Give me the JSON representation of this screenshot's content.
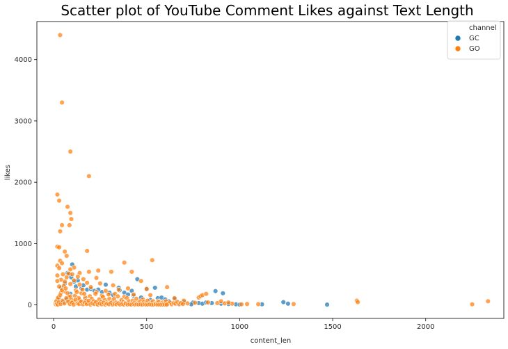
{
  "chart_data": {
    "type": "scatter",
    "title": "Scatter plot of YouTube Comment Likes against Text Length",
    "xlabel": "content_len",
    "ylabel": "likes",
    "xlim": [
      -90,
      2420
    ],
    "ylim": [
      -220,
      4620
    ],
    "xticks": [
      0,
      500,
      1000,
      1500,
      2000
    ],
    "yticks": [
      0,
      1000,
      2000,
      3000,
      4000
    ],
    "grid": false,
    "legend": {
      "title": "channel",
      "placement": "top-right"
    },
    "series": [
      {
        "name": "GC",
        "color": "#1f77b4",
        "points": [
          [
            40,
            280
          ],
          [
            60,
            350
          ],
          [
            75,
            520
          ],
          [
            85,
            500
          ],
          [
            95,
            450
          ],
          [
            100,
            660
          ],
          [
            110,
            380
          ],
          [
            120,
            300
          ],
          [
            130,
            400
          ],
          [
            150,
            270
          ],
          [
            160,
            320
          ],
          [
            180,
            250
          ],
          [
            200,
            260
          ],
          [
            220,
            230
          ],
          [
            240,
            250
          ],
          [
            260,
            210
          ],
          [
            280,
            330
          ],
          [
            300,
            200
          ],
          [
            320,
            160
          ],
          [
            350,
            280
          ],
          [
            355,
            240
          ],
          [
            380,
            200
          ],
          [
            400,
            170
          ],
          [
            420,
            230
          ],
          [
            430,
            150
          ],
          [
            450,
            420
          ],
          [
            470,
            120
          ],
          [
            500,
            260
          ],
          [
            520,
            80
          ],
          [
            545,
            280
          ],
          [
            560,
            110
          ],
          [
            580,
            120
          ],
          [
            600,
            90
          ],
          [
            620,
            60
          ],
          [
            650,
            100
          ],
          [
            700,
            50
          ],
          [
            750,
            40
          ],
          [
            780,
            30
          ],
          [
            800,
            20
          ],
          [
            820,
            40
          ],
          [
            850,
            30
          ],
          [
            870,
            225
          ],
          [
            900,
            20
          ],
          [
            910,
            190
          ],
          [
            940,
            15
          ],
          [
            980,
            10
          ],
          [
            1000,
            5
          ],
          [
            1120,
            10
          ],
          [
            1235,
            45
          ],
          [
            1260,
            20
          ],
          [
            1470,
            5
          ],
          [
            20,
            60
          ],
          [
            30,
            120
          ],
          [
            50,
            40
          ],
          [
            70,
            90
          ],
          [
            90,
            180
          ],
          [
            140,
            60
          ],
          [
            170,
            90
          ],
          [
            210,
            40
          ],
          [
            260,
            60
          ],
          [
            310,
            50
          ],
          [
            360,
            40
          ],
          [
            410,
            30
          ],
          [
            460,
            20
          ],
          [
            510,
            25
          ],
          [
            610,
            15
          ],
          [
            680,
            20
          ],
          [
            740,
            10
          ]
        ]
      },
      {
        "name": "GO",
        "color": "#ff7f0e",
        "points": [
          [
            35,
            4400
          ],
          [
            45,
            3300
          ],
          [
            90,
            2500
          ],
          [
            190,
            2100
          ],
          [
            20,
            1800
          ],
          [
            30,
            1700
          ],
          [
            75,
            1600
          ],
          [
            90,
            1500
          ],
          [
            95,
            1400
          ],
          [
            45,
            1300
          ],
          [
            85,
            1300
          ],
          [
            35,
            1200
          ],
          [
            20,
            950
          ],
          [
            30,
            940
          ],
          [
            180,
            880
          ],
          [
            60,
            870
          ],
          [
            70,
            800
          ],
          [
            530,
            730
          ],
          [
            35,
            720
          ],
          [
            45,
            680
          ],
          [
            380,
            690
          ],
          [
            20,
            640
          ],
          [
            110,
            610
          ],
          [
            30,
            600
          ],
          [
            90,
            580
          ],
          [
            240,
            560
          ],
          [
            190,
            540
          ],
          [
            310,
            540
          ],
          [
            420,
            540
          ],
          [
            140,
            520
          ],
          [
            80,
            510
          ],
          [
            100,
            500
          ],
          [
            50,
            500
          ],
          [
            20,
            480
          ],
          [
            130,
            460
          ],
          [
            70,
            450
          ],
          [
            230,
            440
          ],
          [
            160,
            420
          ],
          [
            40,
            410
          ],
          [
            110,
            400
          ],
          [
            20,
            390
          ],
          [
            470,
            390
          ],
          [
            60,
            380
          ],
          [
            180,
            360
          ],
          [
            250,
            350
          ],
          [
            90,
            340
          ],
          [
            140,
            330
          ],
          [
            320,
            320
          ],
          [
            610,
            290
          ],
          [
            30,
            300
          ],
          [
            200,
            290
          ],
          [
            400,
            270
          ],
          [
            500,
            260
          ],
          [
            350,
            250
          ],
          [
            120,
            240
          ],
          [
            280,
            230
          ],
          [
            60,
            220
          ],
          [
            230,
            210
          ],
          [
            40,
            200
          ],
          [
            150,
            190
          ],
          [
            330,
            180
          ],
          [
            430,
            170
          ],
          [
            520,
            160
          ],
          [
            260,
            150
          ],
          [
            90,
            140
          ],
          [
            380,
            130
          ],
          [
            170,
            120
          ],
          [
            650,
            110
          ],
          [
            300,
            100
          ],
          [
            20,
            90
          ],
          [
            480,
            90
          ],
          [
            140,
            80
          ],
          [
            700,
            70
          ],
          [
            560,
            60
          ],
          [
            220,
            55
          ],
          [
            600,
            45
          ],
          [
            80,
            40
          ],
          [
            760,
            35
          ],
          [
            340,
            30
          ],
          [
            830,
            40
          ],
          [
            880,
            30
          ],
          [
            960,
            20
          ],
          [
            1040,
            15
          ],
          [
            1100,
            12
          ],
          [
            1290,
            15
          ],
          [
            1630,
            70
          ],
          [
            1635,
            45
          ],
          [
            2250,
            10
          ],
          [
            2335,
            60
          ],
          [
            10,
            30
          ],
          [
            15,
            60
          ],
          [
            25,
            120
          ],
          [
            35,
            160
          ],
          [
            45,
            240
          ],
          [
            55,
            310
          ],
          [
            65,
            270
          ],
          [
            75,
            190
          ],
          [
            85,
            130
          ],
          [
            95,
            90
          ],
          [
            105,
            60
          ],
          [
            115,
            150
          ],
          [
            125,
            210
          ],
          [
            135,
            110
          ],
          [
            145,
            40
          ],
          [
            155,
            250
          ],
          [
            165,
            180
          ],
          [
            175,
            70
          ],
          [
            185,
            30
          ],
          [
            195,
            140
          ],
          [
            205,
            100
          ],
          [
            215,
            60
          ],
          [
            225,
            180
          ],
          [
            235,
            20
          ],
          [
            245,
            90
          ],
          [
            255,
            50
          ],
          [
            265,
            130
          ],
          [
            275,
            80
          ],
          [
            285,
            40
          ],
          [
            295,
            170
          ],
          [
            305,
            20
          ],
          [
            315,
            60
          ],
          [
            325,
            100
          ],
          [
            335,
            40
          ],
          [
            345,
            140
          ],
          [
            355,
            20
          ],
          [
            365,
            80
          ],
          [
            375,
            50
          ],
          [
            385,
            30
          ],
          [
            395,
            110
          ],
          [
            405,
            60
          ],
          [
            415,
            20
          ],
          [
            425,
            70
          ],
          [
            435,
            40
          ],
          [
            445,
            100
          ],
          [
            455,
            30
          ],
          [
            465,
            60
          ],
          [
            475,
            20
          ],
          [
            485,
            50
          ],
          [
            495,
            30
          ],
          [
            505,
            70
          ],
          [
            515,
            20
          ],
          [
            525,
            40
          ],
          [
            535,
            60
          ],
          [
            545,
            20
          ],
          [
            555,
            30
          ],
          [
            565,
            50
          ],
          [
            575,
            15
          ],
          [
            585,
            40
          ],
          [
            595,
            25
          ],
          [
            605,
            60
          ],
          [
            615,
            20
          ],
          [
            625,
            40
          ],
          [
            635,
            10
          ],
          [
            645,
            30
          ],
          [
            655,
            20
          ],
          [
            665,
            50
          ],
          [
            675,
            10
          ],
          [
            685,
            30
          ],
          [
            695,
            15
          ],
          [
            720,
            25
          ],
          [
            780,
            120
          ],
          [
            790,
            140
          ],
          [
            800,
            160
          ],
          [
            820,
            180
          ],
          [
            900,
            60
          ],
          [
            920,
            25
          ],
          [
            940,
            40
          ],
          [
            1010,
            10
          ],
          [
            12,
            10
          ],
          [
            18,
            20
          ],
          [
            22,
            5
          ],
          [
            28,
            45
          ],
          [
            38,
            15
          ],
          [
            48,
            70
          ],
          [
            58,
            25
          ],
          [
            68,
            110
          ],
          [
            78,
            55
          ],
          [
            88,
            15
          ],
          [
            98,
            35
          ],
          [
            108,
            5
          ],
          [
            118,
            85
          ],
          [
            128,
            25
          ],
          [
            138,
            15
          ],
          [
            148,
            55
          ],
          [
            158,
            10
          ],
          [
            168,
            35
          ],
          [
            178,
            15
          ],
          [
            188,
            65
          ],
          [
            198,
            5
          ],
          [
            208,
            25
          ],
          [
            218,
            15
          ],
          [
            228,
            45
          ],
          [
            238,
            5
          ],
          [
            248,
            25
          ],
          [
            258,
            10
          ],
          [
            268,
            35
          ],
          [
            278,
            5
          ],
          [
            288,
            20
          ],
          [
            298,
            10
          ],
          [
            308,
            30
          ],
          [
            318,
            5
          ],
          [
            328,
            15
          ],
          [
            338,
            10
          ],
          [
            348,
            25
          ],
          [
            358,
            5
          ],
          [
            368,
            15
          ],
          [
            378,
            5
          ],
          [
            388,
            20
          ],
          [
            398,
            5
          ],
          [
            408,
            10
          ],
          [
            418,
            5
          ],
          [
            428,
            15
          ],
          [
            438,
            5
          ],
          [
            448,
            10
          ],
          [
            458,
            5
          ],
          [
            468,
            10
          ],
          [
            478,
            5
          ],
          [
            488,
            10
          ],
          [
            498,
            5
          ],
          [
            508,
            5
          ],
          [
            518,
            10
          ],
          [
            528,
            5
          ],
          [
            538,
            5
          ],
          [
            548,
            10
          ],
          [
            558,
            5
          ],
          [
            568,
            5
          ],
          [
            578,
            5
          ],
          [
            588,
            5
          ],
          [
            598,
            5
          ],
          [
            608,
            5
          ]
        ]
      }
    ]
  }
}
